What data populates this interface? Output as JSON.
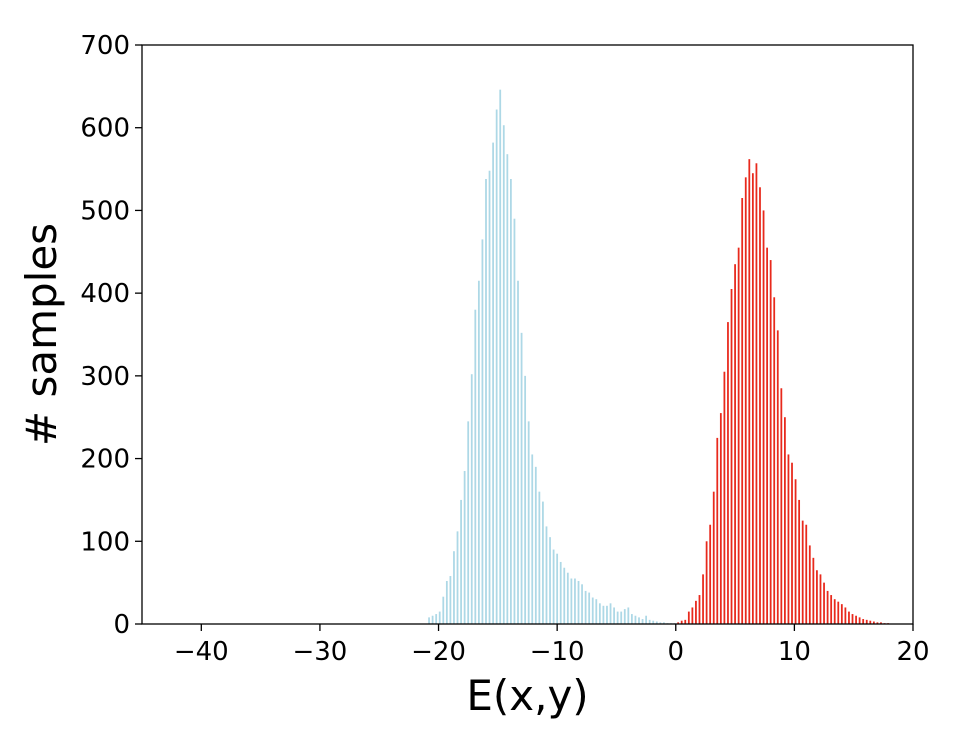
{
  "chart_data": {
    "type": "bar",
    "title": "",
    "xlabel": "E(x,y)",
    "ylabel": "# samples",
    "xlim": [
      -45,
      20
    ],
    "ylim": [
      0,
      700
    ],
    "xticks": [
      -40,
      -30,
      -20,
      -10,
      0,
      10,
      20
    ],
    "xtick_labels": [
      "−40",
      "−30",
      "−20",
      "−10",
      "0",
      "10",
      "20"
    ],
    "yticks": [
      0,
      100,
      200,
      300,
      400,
      500,
      600,
      700
    ],
    "ytick_labels": [
      "0",
      "100",
      "200",
      "300",
      "400",
      "500",
      "600",
      "700"
    ],
    "grid": false,
    "legend": "none",
    "series": [
      {
        "color": "#add8e6",
        "bar_width": 0.15,
        "x": [
          -20.8,
          -20.5,
          -20.2,
          -19.9,
          -19.6,
          -19.3,
          -19.0,
          -18.7,
          -18.4,
          -18.1,
          -17.8,
          -17.5,
          -17.2,
          -16.9,
          -16.6,
          -16.3,
          -16.0,
          -15.7,
          -15.4,
          -15.1,
          -14.8,
          -14.5,
          -14.2,
          -13.9,
          -13.6,
          -13.3,
          -13.0,
          -12.7,
          -12.4,
          -12.1,
          -11.8,
          -11.5,
          -11.2,
          -10.9,
          -10.6,
          -10.3,
          -10.0,
          -9.7,
          -9.4,
          -9.1,
          -8.8,
          -8.5,
          -8.2,
          -7.9,
          -7.6,
          -7.3,
          -7.0,
          -6.7,
          -6.4,
          -6.1,
          -5.8,
          -5.5,
          -5.2,
          -4.9,
          -4.6,
          -4.3,
          -4.0,
          -3.7,
          -3.4,
          -3.1,
          -2.8,
          -2.5,
          -2.2,
          -1.9,
          -1.6,
          -1.3,
          -1.0,
          -0.7,
          -0.4,
          -0.1
        ],
        "values": [
          8,
          10,
          12,
          15,
          33,
          52,
          58,
          88,
          112,
          150,
          185,
          245,
          302,
          380,
          415,
          465,
          538,
          548,
          582,
          622,
          646,
          603,
          568,
          538,
          490,
          415,
          352,
          300,
          245,
          205,
          190,
          160,
          148,
          118,
          105,
          90,
          85,
          75,
          68,
          62,
          55,
          55,
          52,
          48,
          40,
          38,
          32,
          30,
          25,
          22,
          22,
          25,
          20,
          15,
          15,
          18,
          20,
          12,
          10,
          8,
          6,
          10,
          5,
          4,
          3,
          2,
          2,
          1,
          1,
          1
        ]
      },
      {
        "color": "#e8291c",
        "bar_width": 0.15,
        "x": [
          0.2,
          0.5,
          0.8,
          1.1,
          1.4,
          1.7,
          2.0,
          2.3,
          2.6,
          2.9,
          3.2,
          3.5,
          3.8,
          4.1,
          4.4,
          4.7,
          5.0,
          5.3,
          5.6,
          5.9,
          6.2,
          6.5,
          6.8,
          7.1,
          7.4,
          7.7,
          8.0,
          8.3,
          8.6,
          8.9,
          9.2,
          9.5,
          9.8,
          10.1,
          10.4,
          10.7,
          11.0,
          11.3,
          11.6,
          11.9,
          12.2,
          12.5,
          12.8,
          13.1,
          13.4,
          13.7,
          14.0,
          14.3,
          14.6,
          14.9,
          15.2,
          15.5,
          15.8,
          16.1,
          16.4,
          16.7,
          17.0,
          17.3,
          17.6,
          17.9
        ],
        "values": [
          2,
          4,
          5,
          15,
          20,
          28,
          35,
          60,
          100,
          120,
          160,
          225,
          255,
          305,
          365,
          405,
          435,
          455,
          515,
          540,
          562,
          545,
          557,
          528,
          500,
          455,
          440,
          395,
          355,
          285,
          250,
          205,
          195,
          175,
          150,
          125,
          120,
          95,
          80,
          65,
          60,
          50,
          40,
          35,
          30,
          27,
          24,
          20,
          15,
          12,
          10,
          8,
          6,
          5,
          4,
          3,
          2,
          2,
          1,
          1
        ]
      }
    ]
  }
}
